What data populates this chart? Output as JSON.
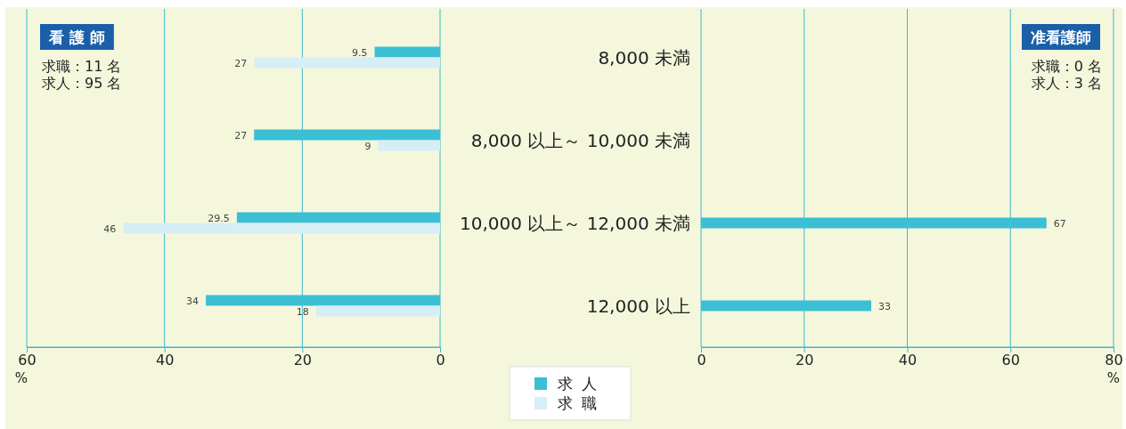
{
  "chart_data": [
    {
      "type": "bar",
      "orientation": "horizontal",
      "title": "看 護 師",
      "xlabel": "%",
      "annotations": [
        "求職：11 名",
        "求人：95 名"
      ],
      "categories": [
        "8,000 未満",
        "8,000 以上～ 10,000 未満",
        "10,000 以上～ 12,000 未満",
        "12,000 以上"
      ],
      "series": [
        {
          "name": "求人",
          "color": "#3bbfd4",
          "values": [
            9.5,
            27,
            29.5,
            34
          ]
        },
        {
          "name": "求職",
          "color": "#d6eef5",
          "values": [
            27,
            9,
            46,
            18
          ]
        }
      ],
      "xlim": [
        60,
        0
      ],
      "xticks": [
        60,
        40,
        20,
        0
      ],
      "grid": "x",
      "data_labels": true,
      "legend": "bottom",
      "tick_labels": "x"
    },
    {
      "type": "bar",
      "orientation": "horizontal",
      "title": "准看護師",
      "xlabel": "%",
      "annotations": [
        "求職：0 名",
        "求人：3 名"
      ],
      "categories": [
        "8,000 未満",
        "8,000 以上～ 10,000 未満",
        "10,000 以上～ 12,000 未満",
        "12,000 以上"
      ],
      "series": [
        {
          "name": "求人",
          "color": "#3bbfd4",
          "values": [
            null,
            null,
            67,
            33
          ]
        }
      ],
      "xlim": [
        0,
        80
      ],
      "xticks": [
        0,
        20,
        40,
        60,
        80
      ],
      "grid": "x",
      "data_labels": true
    }
  ]
}
